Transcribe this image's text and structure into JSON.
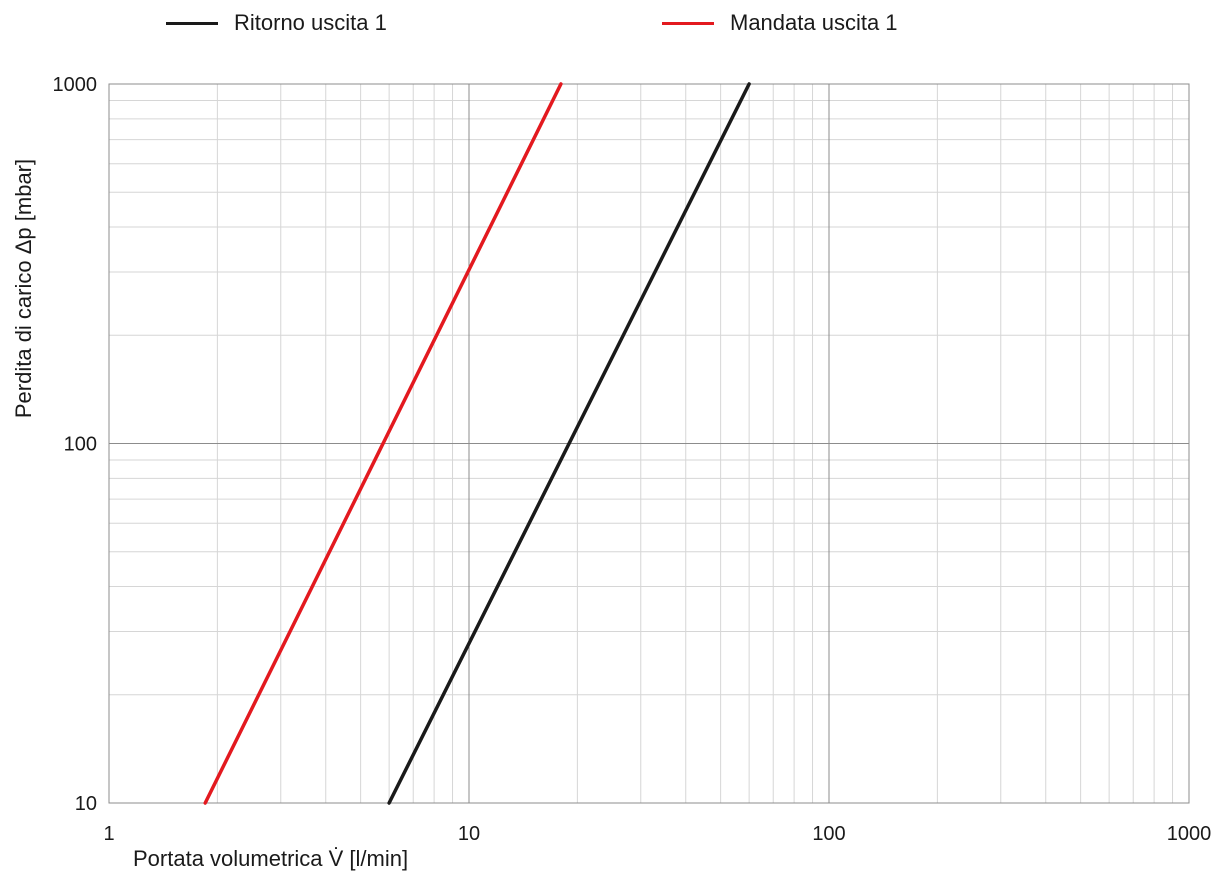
{
  "chart_data": {
    "type": "line",
    "xscale": "log",
    "yscale": "log",
    "xlim": [
      1,
      1000
    ],
    "ylim": [
      10,
      1000
    ],
    "xticks": [
      "1",
      "10",
      "100",
      "1000"
    ],
    "yticks": [
      "10",
      "100",
      "1000"
    ],
    "xlabel": "Portata volumetrica V̇ [l/min]",
    "ylabel": "Perdita di carico Δp [mbar]",
    "grid": true,
    "legend_position": "top",
    "series": [
      {
        "name": "Ritorno uscita 1",
        "color": "#1a1a1a",
        "x": [
          6.0,
          60.0
        ],
        "y": [
          10,
          1000
        ]
      },
      {
        "name": "Mandata uscita 1",
        "color": "#e3191f",
        "x": [
          1.85,
          18.0
        ],
        "y": [
          10,
          1000
        ]
      }
    ]
  }
}
